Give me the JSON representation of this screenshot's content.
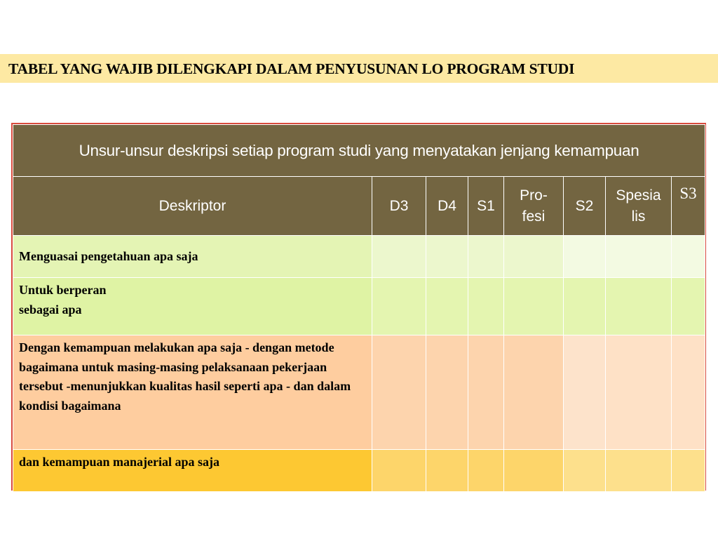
{
  "banner": {
    "title": "TABEL YANG WAJIB DILENGKAPI  DALAM  PENYUSUNAN LO PROGRAM STUDI"
  },
  "table": {
    "title": "Unsur-unsur deskripsi setiap program studi yang menyatakan jenjang kemampuan",
    "columns": {
      "descriptor": "Deskriptor",
      "d3": "D3",
      "d4": "D4",
      "s1": "S1",
      "profesi_1": "Pro-",
      "profesi_2": "fesi",
      "s2": "S2",
      "spesialis_1": "Spesia",
      "spesialis_2": "lis",
      "s3": "S3"
    },
    "rows": {
      "r1": "Menguasai pengetahuan apa saja",
      "r2_line1": "Untuk berperan",
      "r2_line2": "sebagai apa",
      "r3": "Dengan kemampuan melakukan apa saja - dengan metode bagaimana untuk masing-masing pelaksanaan pekerjaan tersebut -menunjukkan kualitas hasil seperti apa - dan dalam kondisi bagaimana",
      "r4": "dan kemampuan manajerial apa saja"
    }
  },
  "colors": {
    "header_bg": "#736541",
    "banner_bg": "#fde9a3",
    "border_accent": "#d84a3c"
  }
}
